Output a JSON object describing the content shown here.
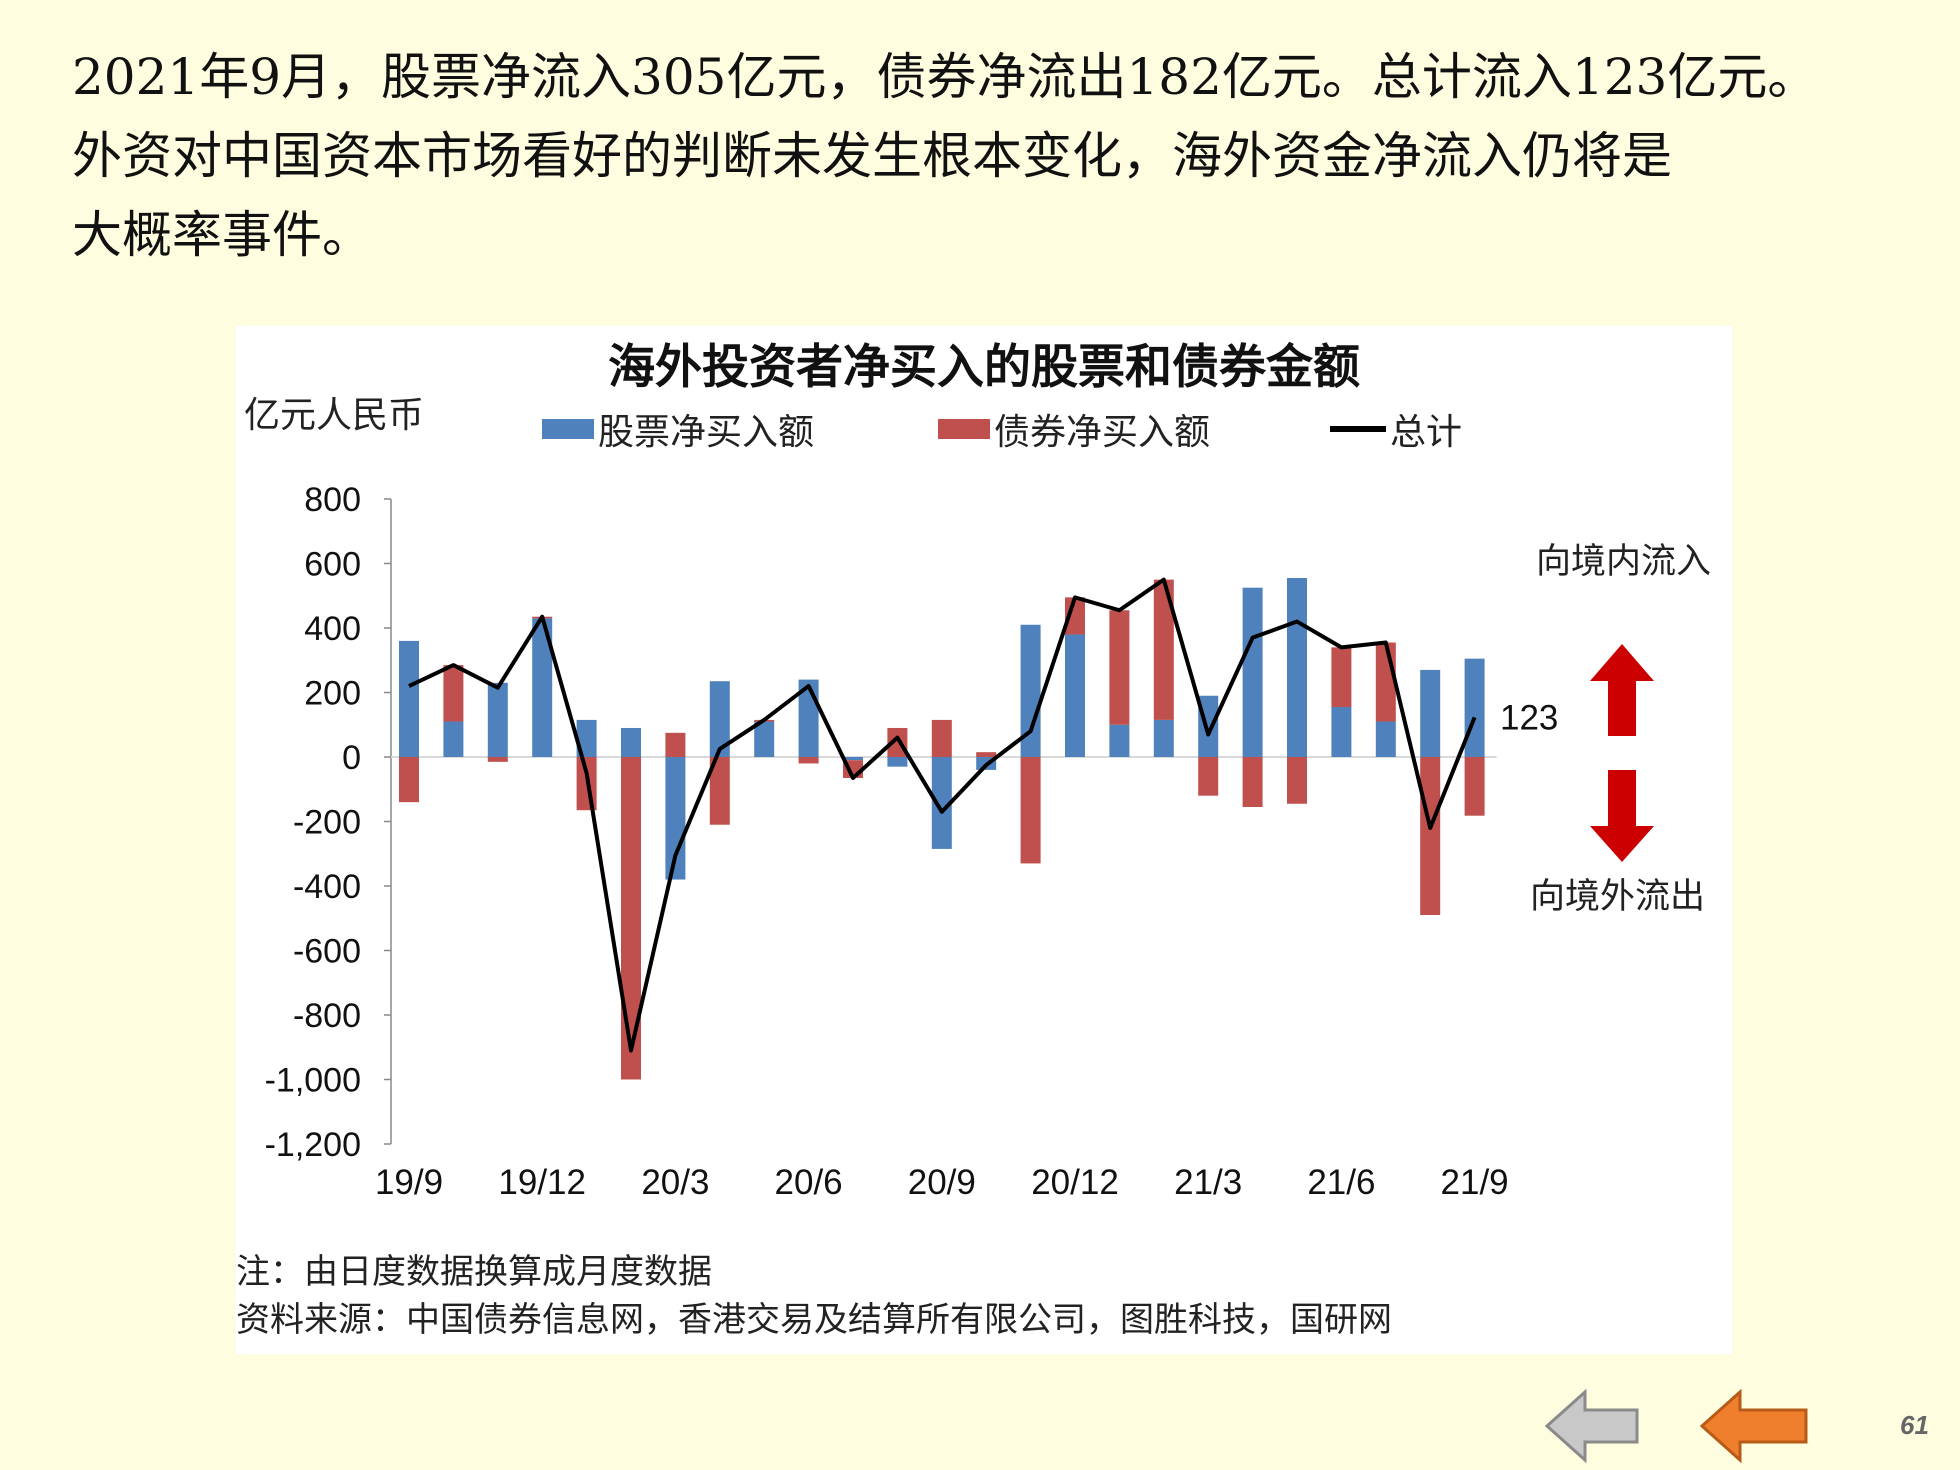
{
  "headline": {
    "line1": "2021年9月，股票净流入305亿元，债券净流出182亿元。总计流入123亿元。",
    "line2": "外资对中国资本市场看好的判断未发生根本变化，海外资金净流入仍将是",
    "line3": "大概率事件。"
  },
  "chart_data": {
    "type": "bar",
    "title": "海外投资者净买入的股票和债券金额",
    "ylabel": "亿元人民币",
    "ylim": [
      -1200,
      800
    ],
    "y_ticks": [
      "800",
      "600",
      "400",
      "200",
      "0",
      "-200",
      "-400",
      "-600",
      "-800",
      "-1,000",
      "-1,200"
    ],
    "x_tick_labels": [
      "19/9",
      "19/12",
      "20/3",
      "20/6",
      "20/9",
      "20/12",
      "21/3",
      "21/6",
      "21/9"
    ],
    "categories": [
      "19/9",
      "19/10",
      "19/11",
      "19/12",
      "20/1",
      "20/2",
      "20/3",
      "20/4",
      "20/5",
      "20/6",
      "20/7",
      "20/8",
      "20/9",
      "20/10",
      "20/11",
      "20/12",
      "21/1",
      "21/2",
      "21/3",
      "21/4",
      "21/5",
      "21/6",
      "21/7",
      "21/8",
      "21/9"
    ],
    "series": [
      {
        "name": "股票净买入额",
        "color": "#4f81bd",
        "values": [
          360,
          110,
          230,
          430,
          115,
          90,
          -380,
          235,
          110,
          240,
          -10,
          -30,
          -285,
          -40,
          410,
          380,
          100,
          115,
          190,
          525,
          555,
          155,
          110,
          270,
          305
        ]
      },
      {
        "name": "债券净买入额",
        "color": "#c0504d",
        "values": [
          -140,
          175,
          -15,
          5,
          -165,
          -1000,
          75,
          -210,
          5,
          -20,
          -55,
          90,
          115,
          15,
          -330,
          115,
          355,
          435,
          -120,
          -155,
          -145,
          185,
          245,
          -490,
          -182
        ]
      },
      {
        "name": "总计",
        "color": "#000000",
        "values": [
          220,
          285,
          215,
          435,
          -50,
          -910,
          -305,
          25,
          115,
          220,
          -65,
          60,
          -170,
          -25,
          80,
          495,
          455,
          550,
          70,
          370,
          420,
          340,
          355,
          -220,
          123
        ]
      }
    ],
    "annotations": {
      "last_value_label": "123",
      "inflow_label": "向境内流入",
      "outflow_label": "向境外流出"
    }
  },
  "notes": {
    "note": "注：由日度数据换算成月度数据",
    "source": "资料来源：中国债券信息网，香港交易及结算所有限公司，图胜科技，国研网"
  },
  "nav": {
    "back_icon": "back-arrow-icon",
    "prev_icon": "previous-arrow-icon"
  },
  "page_number": "61",
  "colors": {
    "background": "#fefde0",
    "stock": "#4f81bd",
    "bond": "#c0504d",
    "arrow_red": "#cc0000",
    "nav_gray": "#c8c8c8",
    "nav_orange": "#f07f2d"
  }
}
